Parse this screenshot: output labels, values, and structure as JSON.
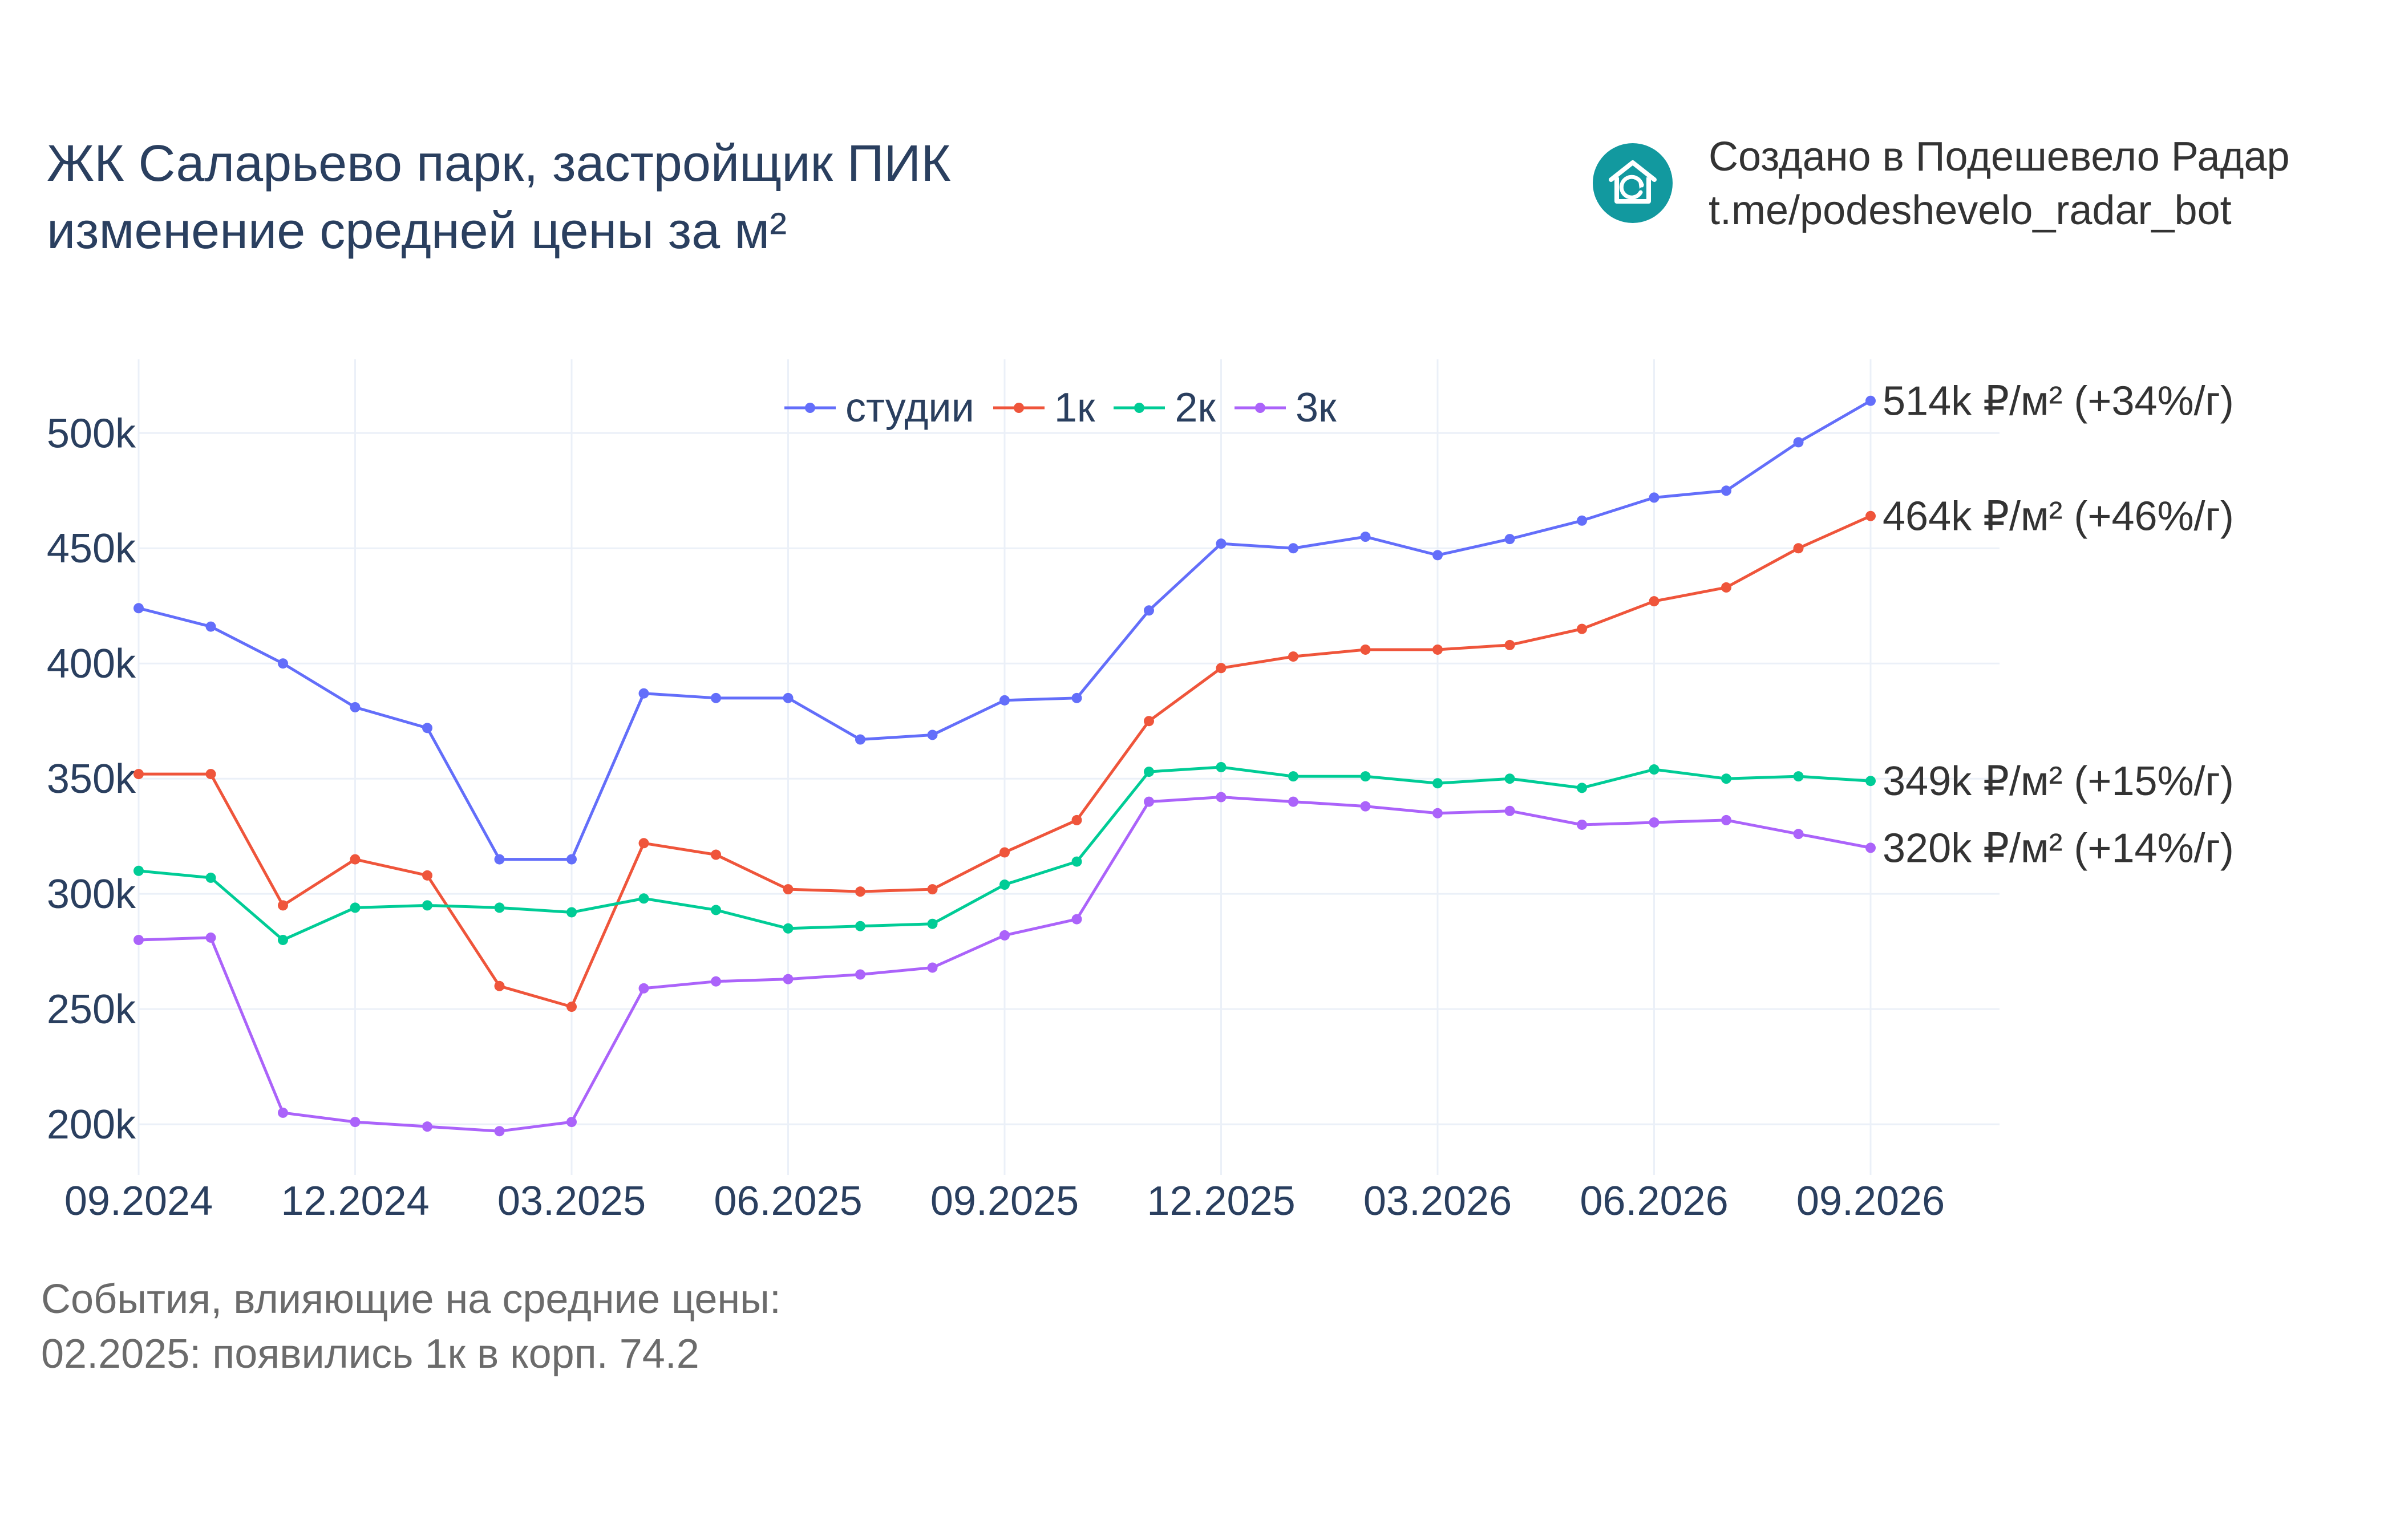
{
  "title": {
    "line1": "ЖК Саларьево парк, застройщик ПИК",
    "line2": "изменение средней цены за м²"
  },
  "credit": {
    "line1": "Создано в Подешевело Радар",
    "line2": "t.me/podeshevelo_radar_bot",
    "logo_icon": "house-refresh-icon",
    "logo_color": "#12999f"
  },
  "notes": {
    "header": "События, влияющие на средние цены:",
    "event1": "02.2025: появились 1к в корп. 74.2"
  },
  "chart_data": {
    "type": "line",
    "x": [
      "2024-09",
      "2024-10",
      "2024-11",
      "2024-12",
      "2025-01",
      "2025-02",
      "2025-03",
      "2025-04",
      "2025-05",
      "2025-06",
      "2025-07",
      "2025-08",
      "2025-09",
      "2025-10",
      "2025-11",
      "2025-12",
      "2026-01",
      "2026-02",
      "2026-03",
      "2026-04",
      "2026-05",
      "2026-06",
      "2026-07",
      "2026-08",
      "2026-09"
    ],
    "xticks": [
      {
        "x": "2024-09",
        "label": "09.2024"
      },
      {
        "x": "2024-12",
        "label": "12.2024"
      },
      {
        "x": "2025-03",
        "label": "03.2025"
      },
      {
        "x": "2025-06",
        "label": "06.2025"
      },
      {
        "x": "2025-09",
        "label": "09.2025"
      },
      {
        "x": "2025-12",
        "label": "12.2025"
      },
      {
        "x": "2026-03",
        "label": "03.2026"
      },
      {
        "x": "2026-06",
        "label": "06.2026"
      },
      {
        "x": "2026-09",
        "label": "09.2026"
      }
    ],
    "yticks": [
      {
        "y": 200000,
        "label": "200k"
      },
      {
        "y": 250000,
        "label": "250k"
      },
      {
        "y": 300000,
        "label": "300k"
      },
      {
        "y": 350000,
        "label": "350k"
      },
      {
        "y": 400000,
        "label": "400k"
      },
      {
        "y": 450000,
        "label": "450k"
      },
      {
        "y": 500000,
        "label": "500k"
      }
    ],
    "ylim": [
      178000,
      532000
    ],
    "grid": true,
    "legend_position": "top-center",
    "series": [
      {
        "name": "студии",
        "color": "#636efa",
        "values": [
          424000,
          416000,
          400000,
          381000,
          372000,
          315000,
          315000,
          387000,
          385000,
          385000,
          367000,
          369000,
          384000,
          385000,
          423000,
          452000,
          450000,
          455000,
          447000,
          454000,
          462000,
          472000,
          475000,
          496000,
          514000
        ],
        "end_label": "514k ₽/м² (+34%/г)"
      },
      {
        "name": "1к",
        "color": "#ef553b",
        "values": [
          352000,
          352000,
          295000,
          315000,
          308000,
          260000,
          251000,
          322000,
          317000,
          302000,
          301000,
          302000,
          318000,
          332000,
          375000,
          398000,
          403000,
          406000,
          406000,
          408000,
          415000,
          427000,
          433000,
          450000,
          464000
        ],
        "end_label": "464k ₽/м² (+46%/г)"
      },
      {
        "name": "2к",
        "color": "#00cc96",
        "values": [
          310000,
          307000,
          280000,
          294000,
          295000,
          294000,
          292000,
          298000,
          293000,
          285000,
          286000,
          287000,
          304000,
          314000,
          353000,
          355000,
          351000,
          351000,
          348000,
          350000,
          346000,
          354000,
          350000,
          351000,
          349000
        ],
        "end_label": "349k ₽/м² (+15%/г)"
      },
      {
        "name": "3к",
        "color": "#ab63fa",
        "values": [
          280000,
          281000,
          205000,
          201000,
          199000,
          197000,
          201000,
          259000,
          262000,
          263000,
          265000,
          268000,
          282000,
          289000,
          340000,
          342000,
          340000,
          338000,
          335000,
          336000,
          330000,
          331000,
          332000,
          326000,
          320000
        ],
        "end_label": "320k ₽/м² (+14%/г)"
      }
    ]
  }
}
